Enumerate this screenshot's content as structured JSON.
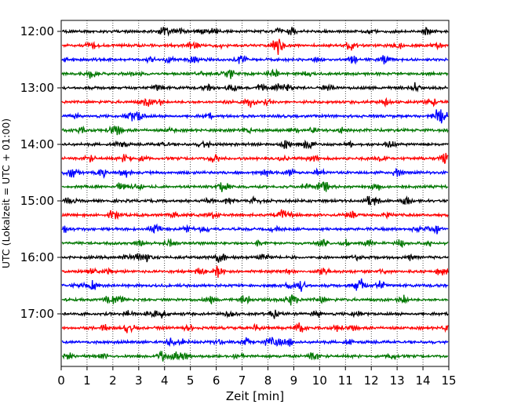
{
  "chart_data": {
    "type": "line",
    "title": "",
    "xlabel": "Zeit  [min]",
    "ylabel": "UTC (Lokalzeit = UTC + 01:00)",
    "xlim": [
      0,
      15
    ],
    "x_ticks": [
      0,
      1,
      2,
      3,
      4,
      5,
      6,
      7,
      8,
      9,
      10,
      11,
      12,
      13,
      14,
      15
    ],
    "x_tick_labels": [
      "0",
      "1",
      "2",
      "3",
      "4",
      "5",
      "6",
      "7",
      "8",
      "9",
      "10",
      "11",
      "12",
      "13",
      "14",
      "15"
    ],
    "y_tick_labels": [
      "12:00",
      "13:00",
      "14:00",
      "15:00",
      "16:00",
      "17:00"
    ],
    "grid": "vertical dotted lines at each minute",
    "trace_interval_minutes": 15,
    "first_trace": "12:00",
    "trace_count": 24,
    "trace_colors": [
      "#000000",
      "#ff0000",
      "#0000ff",
      "#007700"
    ],
    "description_of_traces": "seismogram helicorder, each row is 15 minutes of ground motion"
  }
}
